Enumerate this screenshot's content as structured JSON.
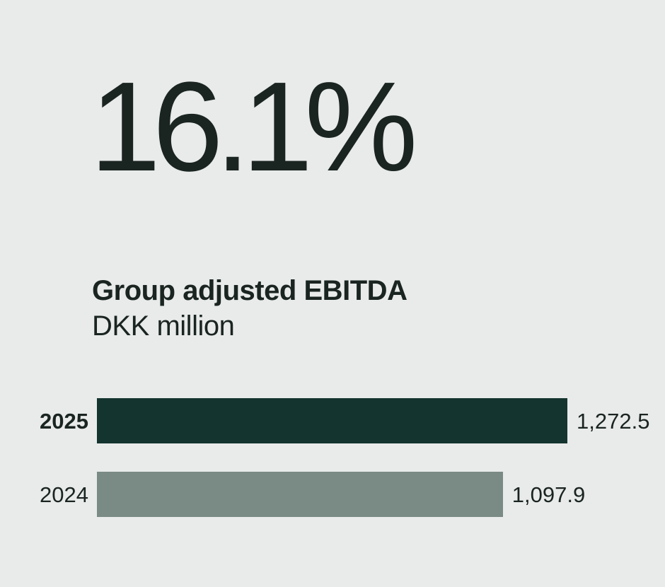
{
  "headline": {
    "value": "16.1%"
  },
  "chart_data": {
    "type": "bar",
    "orientation": "horizontal",
    "title": "Group adjusted EBITDA",
    "unit": "DKK million",
    "categories": [
      "2025",
      "2024"
    ],
    "values": [
      1272.5,
      1097.9
    ],
    "value_labels": [
      "1,272.5",
      "1,097.9"
    ],
    "colors": [
      "#14342F",
      "#7A8A84"
    ],
    "xlim": [
      0,
      1272.5
    ],
    "grid": false,
    "legend": false
  },
  "colors": {
    "background": "#E8EBEA",
    "text": "#1A2421"
  }
}
